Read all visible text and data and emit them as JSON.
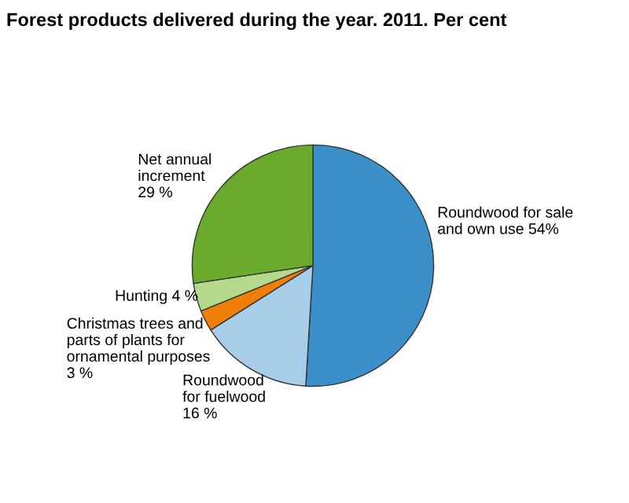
{
  "chart_data": {
    "type": "pie",
    "title": "Forest products delivered during the year. 2011. Per cent",
    "categories": [
      "Roundwood for sale\nand own use 54%",
      "Roundwood\nfor fuelwood\n16 %",
      "Christmas trees and\nparts of plants for\nornamental purposes\n3 %",
      "Hunting 4 %",
      "Net annual\nincrement\n29 %"
    ],
    "values": [
      54,
      16,
      3,
      4,
      29
    ],
    "colors": [
      "#3a8fc8",
      "#a8cde8",
      "#f07f09",
      "#b5d98a",
      "#6aab2e"
    ]
  }
}
